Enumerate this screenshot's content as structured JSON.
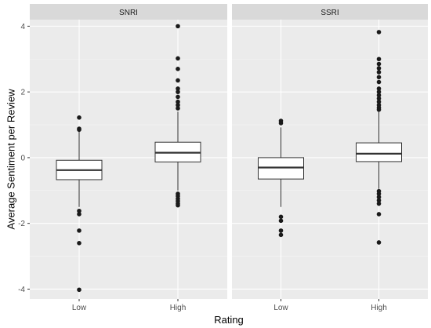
{
  "chart_data": {
    "type": "boxplot",
    "xlabel": "Rating",
    "ylabel": "Average Sentiment per Review",
    "ylim": [
      -4.3,
      4.2
    ],
    "yticks": [
      -4,
      -2,
      0,
      2,
      4
    ],
    "categories": [
      "Low",
      "High"
    ],
    "facets": [
      {
        "name": "SNRI",
        "boxes": [
          {
            "category": "Low",
            "whisker_low": -1.5,
            "q1": -0.67,
            "median": -0.38,
            "q3": -0.08,
            "whisker_high": 0.8,
            "outliers": [
              1.22,
              0.88,
              0.85,
              -1.62,
              -1.72,
              -2.22,
              -2.6,
              -4.02
            ]
          },
          {
            "category": "High",
            "whisker_low": -1.0,
            "q1": -0.13,
            "median": 0.15,
            "q3": 0.47,
            "whisker_high": 1.4,
            "outliers": [
              4.0,
              3.02,
              2.7,
              2.35,
              2.1,
              2.0,
              1.85,
              1.7,
              1.6,
              1.5,
              -1.1,
              -1.17,
              -1.25,
              -1.32,
              -1.4,
              -1.45
            ]
          }
        ]
      },
      {
        "name": "SSRI",
        "boxes": [
          {
            "category": "Low",
            "whisker_low": -1.5,
            "q1": -0.65,
            "median": -0.3,
            "q3": 0.0,
            "whisker_high": 0.92,
            "outliers": [
              1.12,
              1.05,
              -1.8,
              -1.92,
              -2.22,
              -2.35
            ]
          },
          {
            "category": "High",
            "whisker_low": -0.95,
            "q1": -0.12,
            "median": 0.12,
            "q3": 0.45,
            "whisker_high": 1.4,
            "outliers": [
              3.82,
              3.0,
              2.85,
              2.72,
              2.6,
              2.45,
              2.3,
              2.1,
              2.0,
              1.9,
              1.8,
              1.7,
              1.6,
              1.52,
              1.46,
              -1.02,
              -1.1,
              -1.2,
              -1.3,
              -1.4,
              -1.72,
              -2.58
            ]
          }
        ]
      }
    ]
  }
}
